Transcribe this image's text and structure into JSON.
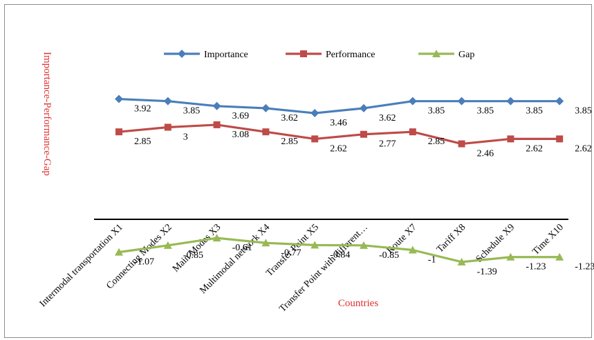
{
  "chart_data": {
    "type": "line",
    "xlabel": "Countries",
    "ylabel": "Importance-Performance-Gap",
    "ylim": [
      -1.5,
      4.5
    ],
    "grid": false,
    "legend_position": "top",
    "categories": [
      "Intermodal transportation X1",
      "Connecting Modes X2",
      "Main Modes X3",
      "Multimodal network X4",
      "Transfer Point X5",
      "Transfer Point with different…",
      "Route X7",
      "Tariff X8",
      "Schedule X9",
      "Time X10"
    ],
    "series": [
      {
        "name": "Importance",
        "color": "#4a7ebb",
        "marker": "diamond",
        "values": [
          3.92,
          3.85,
          3.69,
          3.62,
          3.46,
          3.62,
          3.85,
          3.85,
          3.85,
          3.85
        ],
        "labels": [
          "3.92",
          "3.85",
          "3.69",
          "3.62",
          "3.46",
          "3.62",
          "3.85",
          "3.85",
          "3.85",
          "3.85"
        ]
      },
      {
        "name": "Performance",
        "color": "#be4b48",
        "marker": "square",
        "values": [
          2.85,
          3.0,
          3.08,
          2.85,
          2.62,
          2.77,
          2.85,
          2.46,
          2.62,
          2.62
        ],
        "labels": [
          "2.85",
          "3",
          "3.08",
          "2.85",
          "2.62",
          "2.77",
          "2.85",
          "2.46",
          "2.62",
          "2.62"
        ]
      },
      {
        "name": "Gap",
        "color": "#98b954",
        "marker": "triangle",
        "values": [
          -1.07,
          -0.85,
          -0.61,
          -0.77,
          -0.84,
          -0.85,
          -1.0,
          -1.39,
          -1.23,
          -1.23
        ],
        "labels": [
          "-1.07",
          "-0.85",
          "-0.61",
          "-0.77",
          "-0.84",
          "-0.85",
          "-1",
          "-1.39",
          "-1.23",
          "-1.23"
        ]
      }
    ]
  }
}
